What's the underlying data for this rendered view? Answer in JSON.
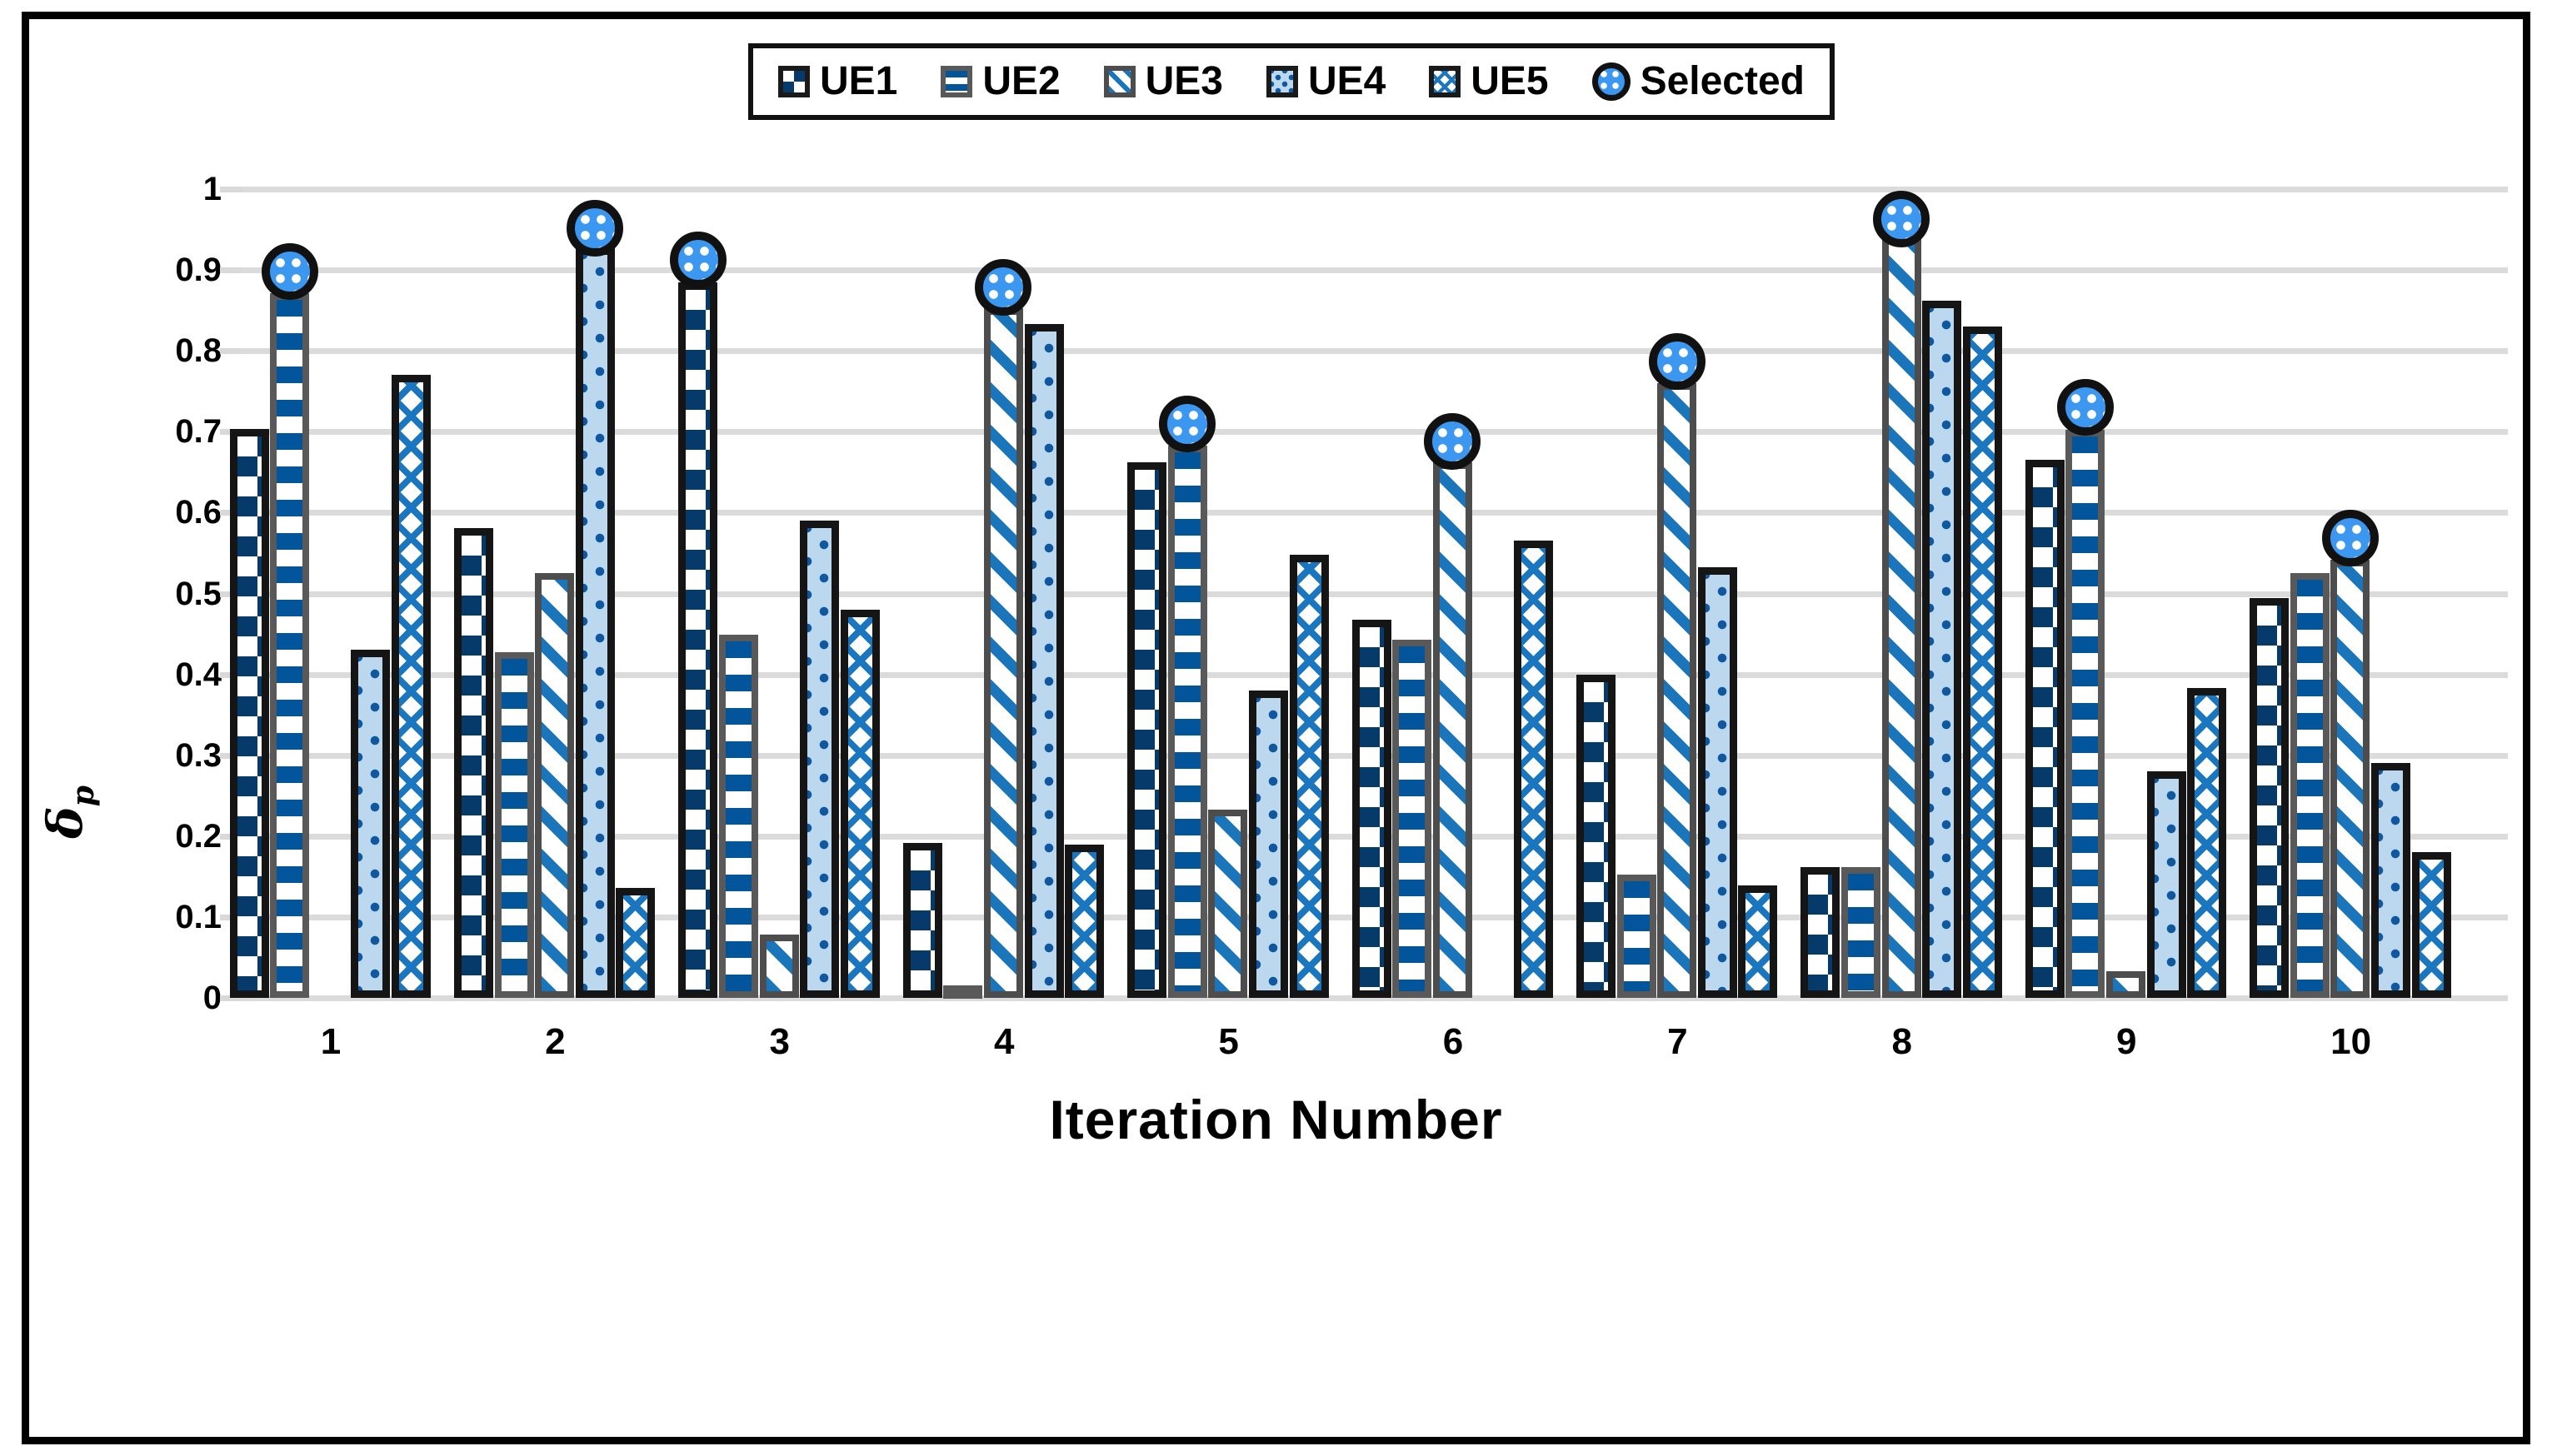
{
  "axes": {
    "y_title": {
      "symbol": "δ",
      "subscript": "p"
    },
    "x_title": "Iteration Number",
    "y_tick_labels": [
      "0",
      "0.1",
      "0.2",
      "0.3",
      "0.4",
      "0.5",
      "0.6",
      "0.7",
      "0.8",
      "0.9",
      "1"
    ],
    "x_tick_labels": [
      "1",
      "2",
      "3",
      "4",
      "5",
      "6",
      "7",
      "8",
      "9",
      "10"
    ],
    "ylim": [
      0,
      1
    ],
    "grid": "horizontal-light-gray"
  },
  "legend": {
    "items": [
      {
        "label": "UE1",
        "swatch": "sw-ue1",
        "marker": "checkerboard-navy-square"
      },
      {
        "label": "UE2",
        "swatch": "sw-ue2",
        "marker": "horizontal-stripes-blue-square"
      },
      {
        "label": "UE3",
        "swatch": "sw-ue3",
        "marker": "diagonal-stripes-blue-square"
      },
      {
        "label": "UE4",
        "swatch": "sw-ue4",
        "marker": "dotted-lightblue-square"
      },
      {
        "label": "UE5",
        "swatch": "sw-ue5",
        "marker": "crosshatch-lightblue-square"
      },
      {
        "label": "Selected",
        "swatch": "sw-selected",
        "marker": "dotted-blue-circle"
      }
    ]
  },
  "colors": {
    "ue1_fill": "#063A6B",
    "ue2_stripe": "#02549B",
    "ue3_stripe": "#1B75BB",
    "ue4_bg": "#BCD8EE",
    "ue4_dot": "#0F579E",
    "ue5_cross": "#1B76C0",
    "selected_fill": "#3B97F0",
    "gridline": "#DBDBDB",
    "frame": "#000000"
  },
  "chart_data": {
    "type": "bar",
    "title": "",
    "xlabel": "Iteration Number",
    "ylabel": "δ_p",
    "ylim": [
      0,
      1
    ],
    "categories": [
      1,
      2,
      3,
      4,
      5,
      6,
      7,
      8,
      9,
      10
    ],
    "series": [
      {
        "name": "UE1",
        "pattern": "checkerboard",
        "values": [
          0.703,
          0.581,
          0.885,
          0.192,
          0.662,
          0.468,
          0.4,
          0.162,
          0.665,
          0.494
        ]
      },
      {
        "name": "UE2",
        "pattern": "horizontal-stripes",
        "values": [
          0.871,
          0.427,
          0.449,
          0.015,
          0.683,
          0.443,
          0.152,
          0.162,
          0.702,
          0.525
        ]
      },
      {
        "name": "UE3",
        "pattern": "diagonal-stripes",
        "values": [
          0,
          0.525,
          0.078,
          0.853,
          0.233,
          0.662,
          0.76,
          0.94,
          0.033,
          0.542
        ]
      },
      {
        "name": "UE4",
        "pattern": "dots-on-lightblue",
        "values": [
          0.43,
          0.928,
          0.59,
          0.833,
          0.38,
          0,
          0.532,
          0.862,
          0.28,
          0.29
        ]
      },
      {
        "name": "UE5",
        "pattern": "crosshatch",
        "values": [
          0.77,
          0.136,
          0.48,
          0.19,
          0.548,
          0.565,
          0.139,
          0.83,
          0.383,
          0.18
        ]
      }
    ],
    "selected": [
      {
        "iteration": 1,
        "series": "UE2",
        "value": 0.898
      },
      {
        "iteration": 2,
        "series": "UE4",
        "value": 0.952
      },
      {
        "iteration": 3,
        "series": "UE1",
        "value": 0.912
      },
      {
        "iteration": 4,
        "series": "UE3",
        "value": 0.878
      },
      {
        "iteration": 5,
        "series": "UE2",
        "value": 0.71
      },
      {
        "iteration": 6,
        "series": "UE3",
        "value": 0.688
      },
      {
        "iteration": 7,
        "series": "UE3",
        "value": 0.787
      },
      {
        "iteration": 8,
        "series": "UE3",
        "value": 0.963
      },
      {
        "iteration": 9,
        "series": "UE2",
        "value": 0.73
      },
      {
        "iteration": 10,
        "series": "UE3",
        "value": 0.568
      }
    ],
    "legend_position": "top-center"
  }
}
